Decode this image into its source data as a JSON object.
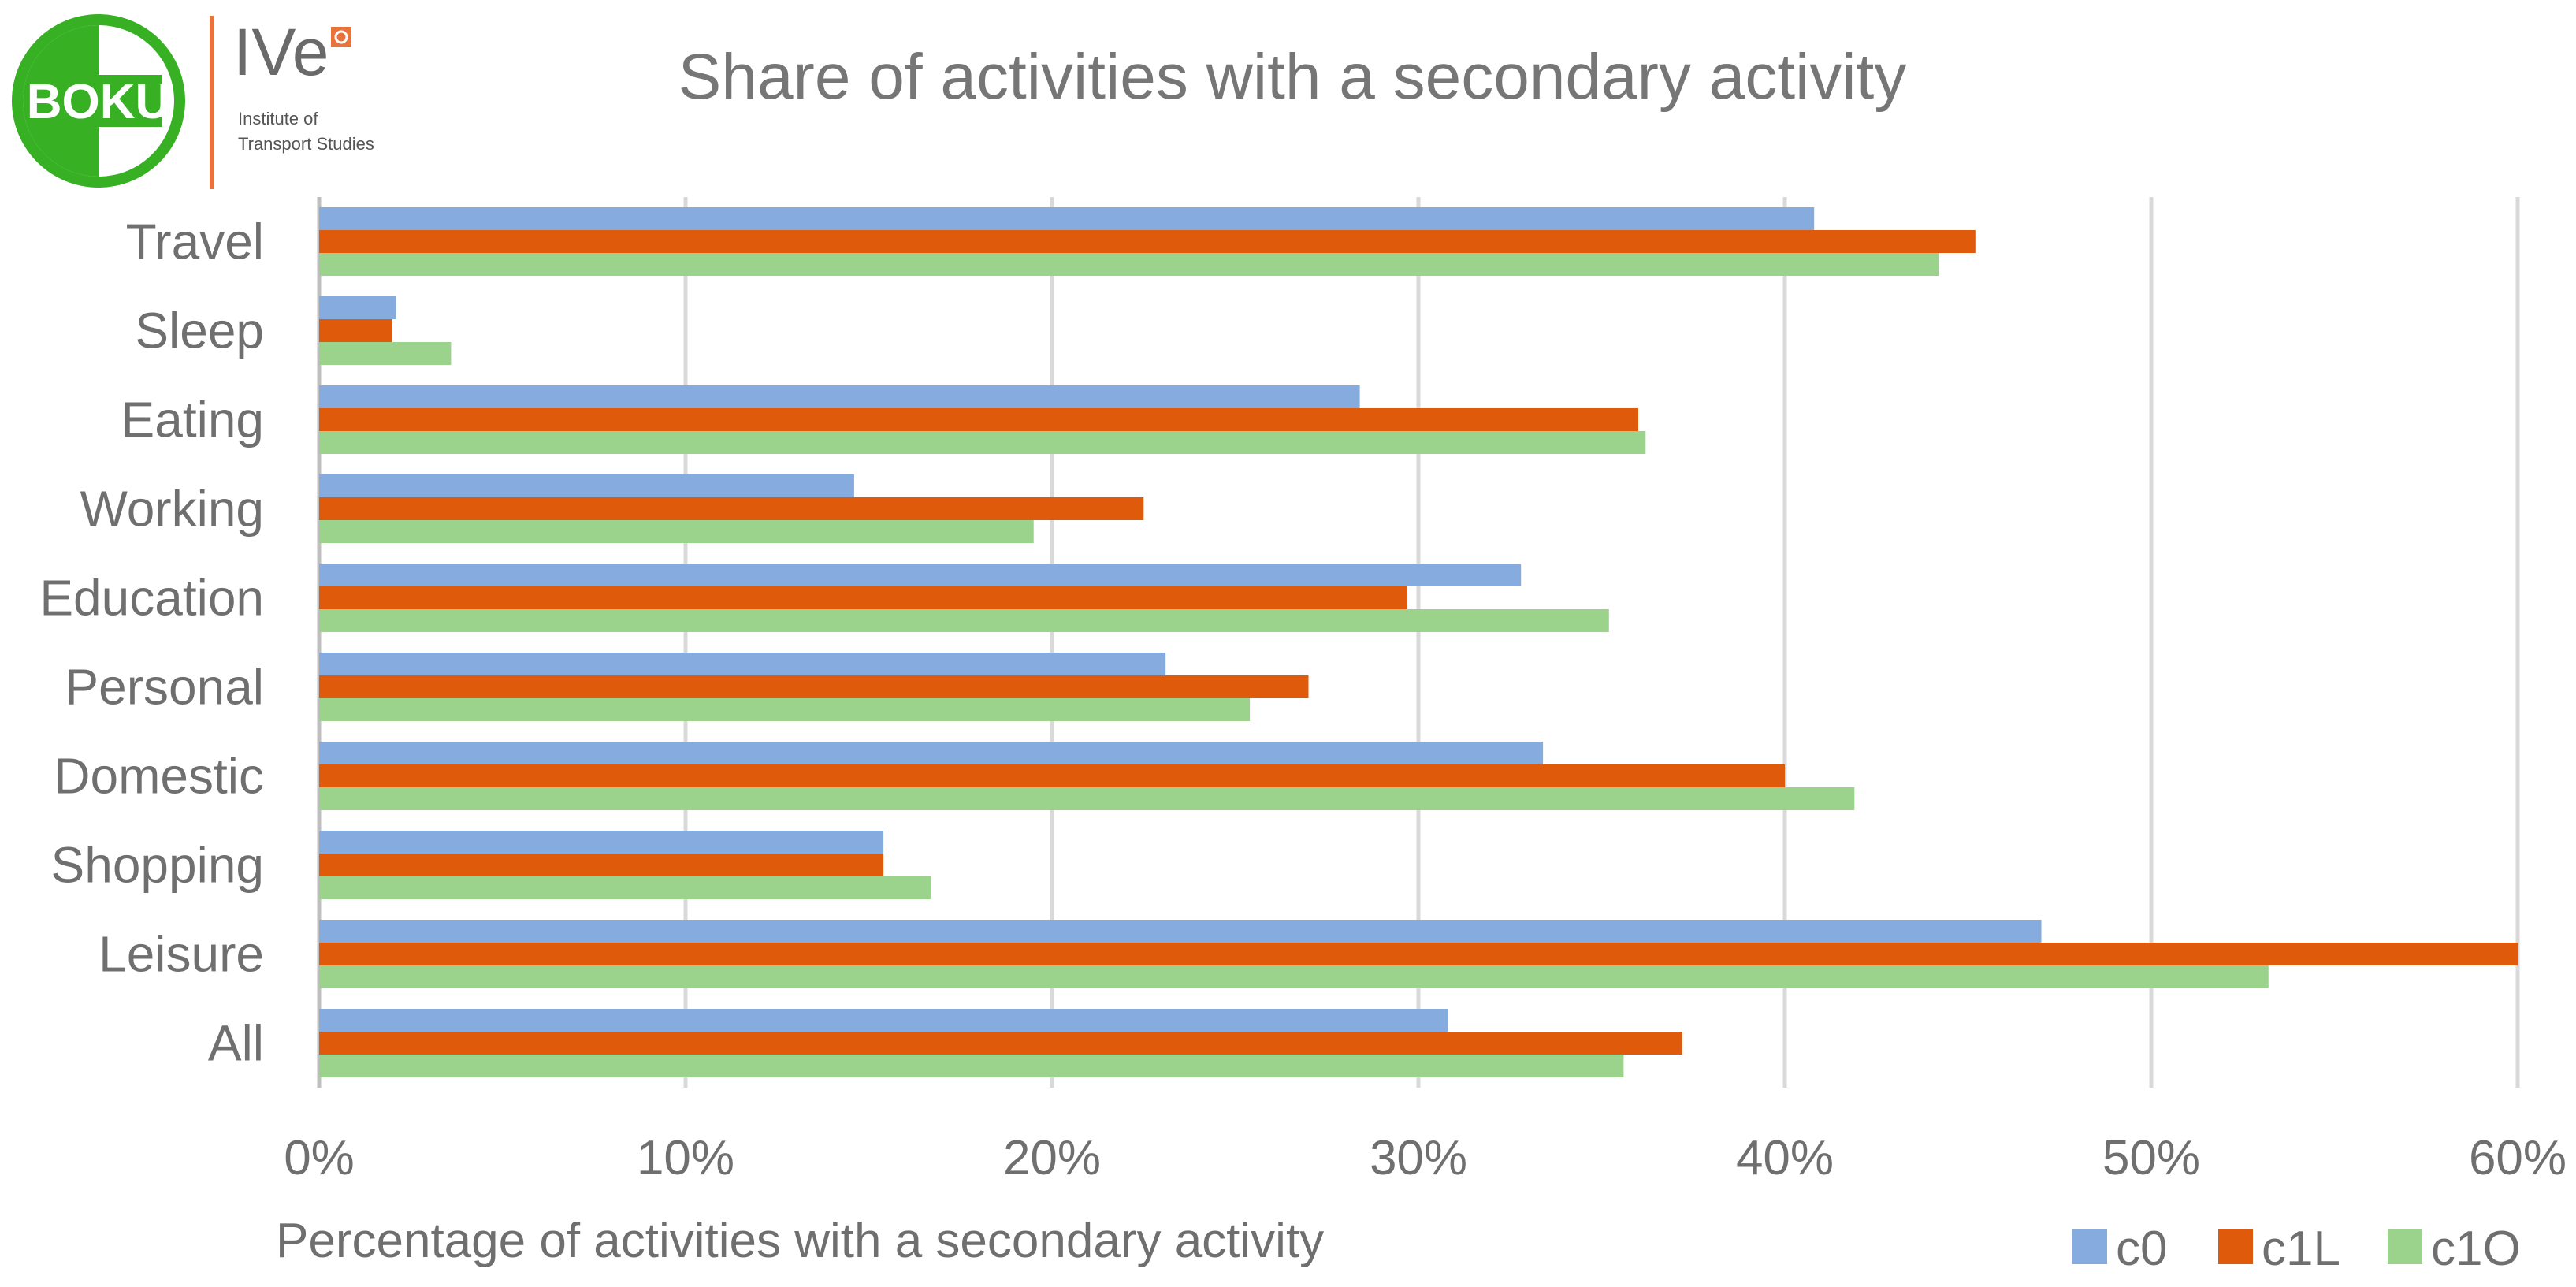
{
  "logo": {
    "mark_text": "BOKU",
    "unit_text": "IVe",
    "institute_line1": "Institute of",
    "institute_line2": "Transport Studies",
    "colors": {
      "green": "#37b024",
      "orange": "#e8743b"
    }
  },
  "chart_data": {
    "type": "bar",
    "orientation": "horizontal",
    "title": "Share of activities with a secondary activity",
    "xlabel": "Percentage of activities with a secondary activity",
    "ylabel": "",
    "xlim": [
      0,
      60
    ],
    "x_ticks": [
      "0%",
      "10%",
      "20%",
      "30%",
      "40%",
      "50%",
      "60%"
    ],
    "x_tick_values": [
      0,
      10,
      20,
      30,
      40,
      50,
      60
    ],
    "grid": true,
    "legend_position": "bottom-right",
    "categories": [
      "Travel",
      "Sleep",
      "Eating",
      "Working",
      "Education",
      "Personal",
      "Domestic",
      "Shopping",
      "Leisure",
      "All"
    ],
    "series": [
      {
        "name": "c0",
        "color": "#86abdf",
        "values": [
          40.8,
          2.1,
          28.4,
          14.6,
          32.8,
          23.1,
          33.4,
          15.4,
          47.0,
          30.8
        ]
      },
      {
        "name": "c1L",
        "color": "#e05a0c",
        "values": [
          45.2,
          2.0,
          36.0,
          22.5,
          29.7,
          27.0,
          40.0,
          15.4,
          60.0,
          37.2
        ]
      },
      {
        "name": "c1O",
        "color": "#9bd38d",
        "values": [
          44.2,
          3.6,
          36.2,
          19.5,
          35.2,
          25.4,
          41.9,
          16.7,
          53.2,
          35.6
        ]
      }
    ]
  }
}
